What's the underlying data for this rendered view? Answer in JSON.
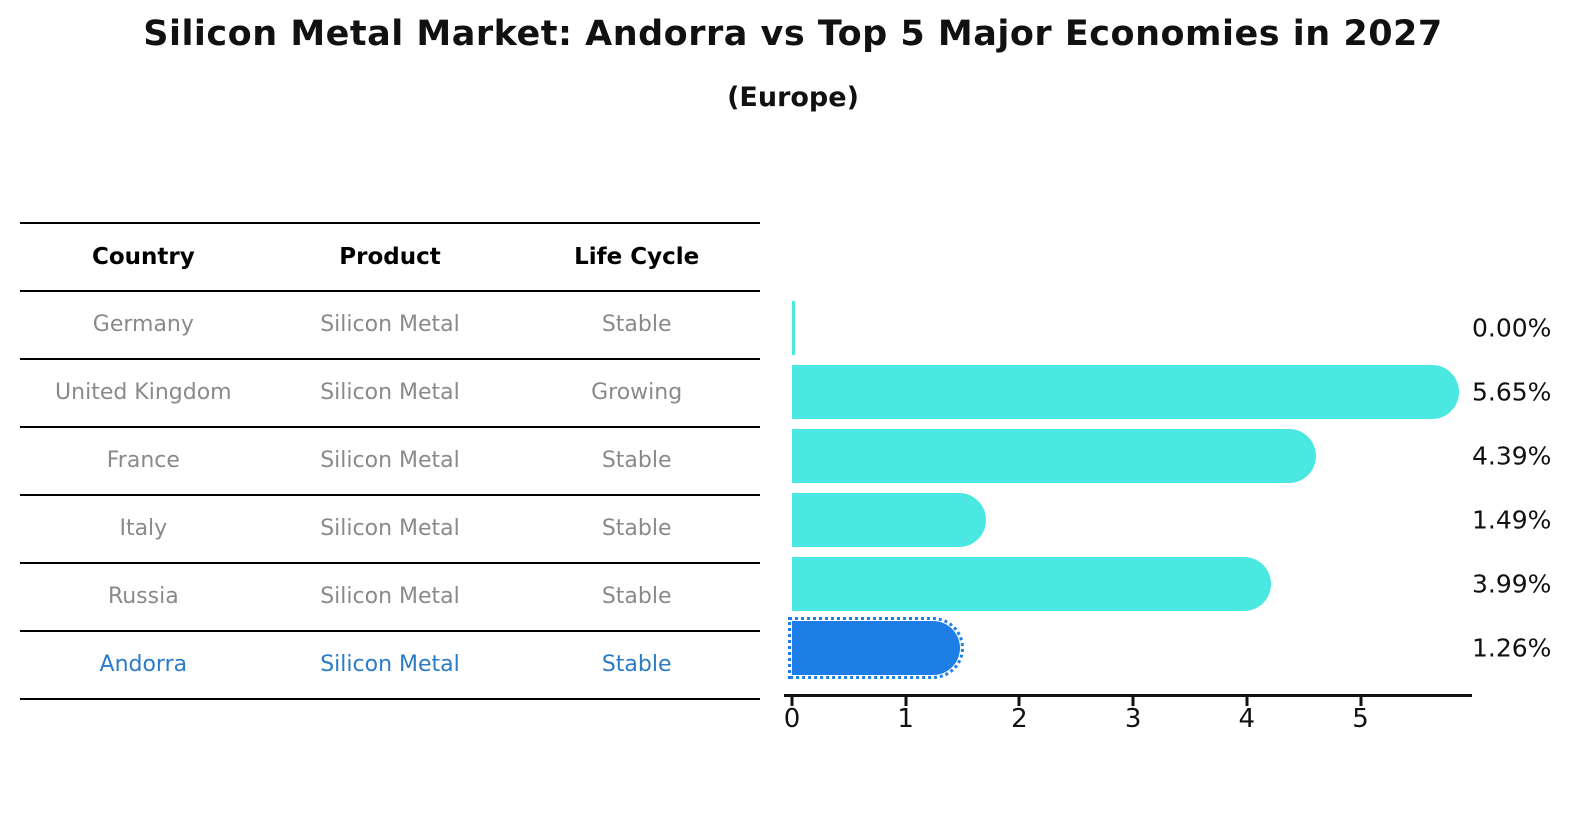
{
  "table": {
    "headers": [
      "Country",
      "Product",
      "Life Cycle"
    ],
    "rows": [
      {
        "country": "Germany",
        "product": "Silicon Metal",
        "life_cycle": "Stable",
        "highlight": false
      },
      {
        "country": "United Kingdom",
        "product": "Silicon Metal",
        "life_cycle": "Growing",
        "highlight": false
      },
      {
        "country": "France",
        "product": "Silicon Metal",
        "life_cycle": "Stable",
        "highlight": false
      },
      {
        "country": "Italy",
        "product": "Silicon Metal",
        "life_cycle": "Stable",
        "highlight": false
      },
      {
        "country": "Russia",
        "product": "Silicon Metal",
        "life_cycle": "Stable",
        "highlight": false
      },
      {
        "country": "Andorra",
        "product": "Silicon Metal",
        "life_cycle": "Stable",
        "highlight": true
      }
    ]
  },
  "chart_data": {
    "type": "bar",
    "orientation": "horizontal",
    "title": "Silicon Metal Market: Andorra vs Top 5 Major Economies in 2027",
    "subtitle": "(Europe)",
    "categories": [
      "Germany",
      "United Kingdom",
      "France",
      "Italy",
      "Russia",
      "Andorra"
    ],
    "values": [
      0.0,
      5.65,
      4.39,
      1.49,
      3.99,
      1.26
    ],
    "value_labels": [
      "0.00%",
      "5.65%",
      "4.39%",
      "1.49%",
      "3.99%",
      "1.26%"
    ],
    "xlabel": "",
    "ylabel": "",
    "xlim": [
      0,
      6
    ],
    "x_ticks": [
      "0",
      "1",
      "2",
      "3",
      "4",
      "5"
    ],
    "grid": false,
    "legend": false,
    "bar_color": "#4AE8E0",
    "highlight_bar_color": "#1E7EE8",
    "highlight_index": 5,
    "value_text_color": "#111111",
    "muted_text_color": "#8a8a8a",
    "highlight_text_color": "#2B7BC7"
  }
}
